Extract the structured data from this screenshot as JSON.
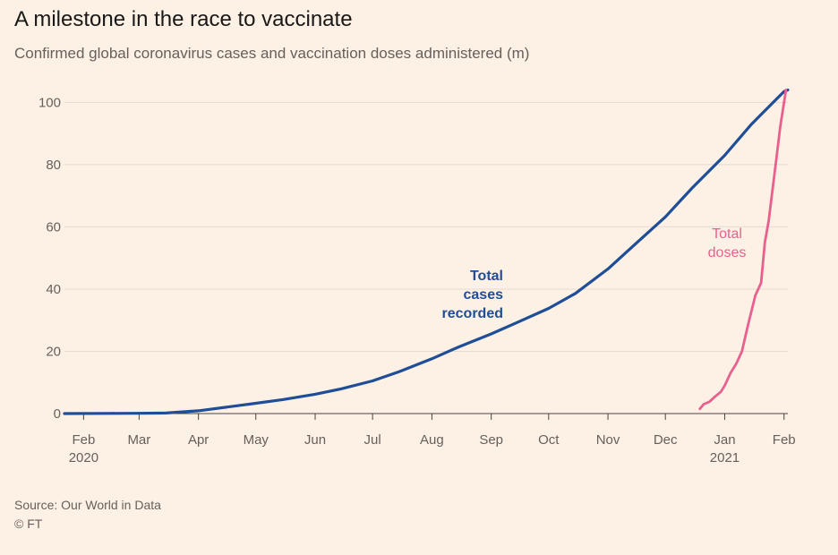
{
  "header": {
    "title": "A milestone in the race to vaccinate",
    "subtitle": "Confirmed global coronavirus cases and vaccination doses administered (m)"
  },
  "footer": {
    "source": "Source: Our World in Data",
    "credit": "© FT"
  },
  "colors": {
    "background": "#fdf1e6",
    "cases": "#1f4e96",
    "doses": "#e8608e",
    "grid": "#e6dbd1"
  },
  "chart_data": {
    "type": "line",
    "x_unit": "date",
    "xlim": [
      "2020-01-22",
      "2021-02-03"
    ],
    "ylim": [
      0,
      105
    ],
    "yticks": [
      0,
      20,
      40,
      60,
      80,
      100
    ],
    "ytick_labels": [
      "0",
      "20",
      "40",
      "60",
      "80",
      "100"
    ],
    "grid": true,
    "xticks": [
      {
        "date": "2020-02-01",
        "label": "Feb",
        "sublabel": "2020"
      },
      {
        "date": "2020-03-01",
        "label": "Mar",
        "sublabel": ""
      },
      {
        "date": "2020-04-01",
        "label": "Apr",
        "sublabel": ""
      },
      {
        "date": "2020-05-01",
        "label": "May",
        "sublabel": ""
      },
      {
        "date": "2020-06-01",
        "label": "Jun",
        "sublabel": ""
      },
      {
        "date": "2020-07-01",
        "label": "Jul",
        "sublabel": ""
      },
      {
        "date": "2020-08-01",
        "label": "Aug",
        "sublabel": ""
      },
      {
        "date": "2020-09-01",
        "label": "Sep",
        "sublabel": ""
      },
      {
        "date": "2020-10-01",
        "label": "Oct",
        "sublabel": ""
      },
      {
        "date": "2020-11-01",
        "label": "Nov",
        "sublabel": ""
      },
      {
        "date": "2020-12-01",
        "label": "Dec",
        "sublabel": ""
      },
      {
        "date": "2021-01-01",
        "label": "Jan",
        "sublabel": "2021"
      },
      {
        "date": "2021-02-01",
        "label": "Feb",
        "sublabel": ""
      }
    ],
    "series": [
      {
        "name": "Total cases recorded",
        "label_lines": [
          "Total",
          "cases",
          "recorded"
        ],
        "color": "#1f4e96",
        "points": [
          [
            "2020-01-22",
            0
          ],
          [
            "2020-02-15",
            0.07
          ],
          [
            "2020-03-01",
            0.09
          ],
          [
            "2020-03-15",
            0.17
          ],
          [
            "2020-04-01",
            0.9
          ],
          [
            "2020-04-15",
            2.0
          ],
          [
            "2020-05-01",
            3.3
          ],
          [
            "2020-05-15",
            4.5
          ],
          [
            "2020-06-01",
            6.2
          ],
          [
            "2020-06-15",
            8.0
          ],
          [
            "2020-07-01",
            10.5
          ],
          [
            "2020-07-15",
            13.5
          ],
          [
            "2020-08-01",
            17.6
          ],
          [
            "2020-08-15",
            21.4
          ],
          [
            "2020-09-01",
            25.6
          ],
          [
            "2020-09-15",
            29.4
          ],
          [
            "2020-10-01",
            33.8
          ],
          [
            "2020-10-15",
            38.6
          ],
          [
            "2020-11-01",
            46.5
          ],
          [
            "2020-11-15",
            54.3
          ],
          [
            "2020-12-01",
            63.2
          ],
          [
            "2020-12-15",
            72.5
          ],
          [
            "2021-01-01",
            83.0
          ],
          [
            "2021-01-15",
            93.0
          ],
          [
            "2021-02-01",
            103.5
          ],
          [
            "2021-02-03",
            104.0
          ]
        ]
      },
      {
        "name": "Total doses",
        "label_lines": [
          "Total",
          "doses"
        ],
        "color": "#e8608e",
        "points": [
          [
            "2020-12-19",
            1.5
          ],
          [
            "2020-12-21",
            3.0
          ],
          [
            "2020-12-24",
            3.8
          ],
          [
            "2020-12-27",
            5.5
          ],
          [
            "2020-12-30",
            7.0
          ],
          [
            "2021-01-01",
            9.0
          ],
          [
            "2021-01-04",
            13.0
          ],
          [
            "2021-01-07",
            16.0
          ],
          [
            "2021-01-10",
            20.0
          ],
          [
            "2021-01-13",
            28.0
          ],
          [
            "2021-01-15",
            33.0
          ],
          [
            "2021-01-17",
            38.0
          ],
          [
            "2021-01-20",
            42.0
          ],
          [
            "2021-01-22",
            55.0
          ],
          [
            "2021-01-24",
            62.0
          ],
          [
            "2021-01-26",
            72.0
          ],
          [
            "2021-01-28",
            82.0
          ],
          [
            "2021-01-30",
            92.0
          ],
          [
            "2021-02-02",
            104.0
          ]
        ]
      }
    ]
  }
}
